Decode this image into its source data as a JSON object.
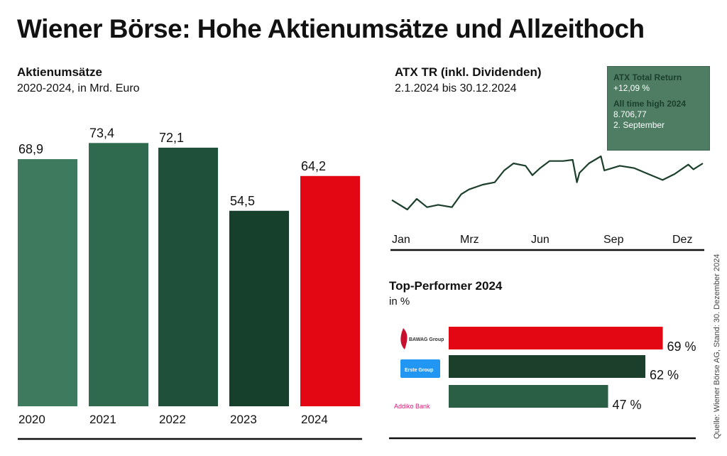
{
  "title": "Wiener Börse: Hohe Aktienumsätze und Allzeithoch",
  "source": "Quelle: Wiener Börse AG, Stand: 30. Dezember 2024",
  "chart_data": [
    {
      "type": "bar",
      "title": "Aktienumsätze",
      "subtitle": "2020-2024, in Mrd. Euro",
      "categories": [
        "2020",
        "2021",
        "2022",
        "2023",
        "2024"
      ],
      "values": [
        68.9,
        73.4,
        72.1,
        54.5,
        64.2
      ],
      "value_labels": [
        "68,9",
        "73,4",
        "72,1",
        "54,5",
        "64,2"
      ],
      "colors": [
        "#3d7a5e",
        "#2f6a4f",
        "#1f5039",
        "#163f2c",
        "#e30613"
      ],
      "ylim": [
        0,
        75
      ],
      "grid": false
    },
    {
      "type": "line",
      "title": "ATX TR (inkl. Dividenden)",
      "subtitle": "2.1.2024 bis 30.12.2024",
      "x_tick_labels": [
        "Jan",
        "Mrz",
        "Jun",
        "Sep",
        "Dez"
      ],
      "color": "#1b3f2b",
      "grid": false,
      "x": [
        "2024-01-02",
        "2024-01-20",
        "2024-01-31",
        "2024-02-12",
        "2024-02-25",
        "2024-03-12",
        "2024-03-23",
        "2024-04-01",
        "2024-04-17",
        "2024-05-01",
        "2024-05-12",
        "2024-05-23",
        "2024-06-06",
        "2024-06-14",
        "2024-06-23",
        "2024-07-04",
        "2024-07-20",
        "2024-07-31",
        "2024-08-05",
        "2024-08-08",
        "2024-08-19",
        "2024-09-02",
        "2024-09-06",
        "2024-09-24",
        "2024-10-11",
        "2024-10-24",
        "2024-11-13",
        "2024-11-27",
        "2024-12-13",
        "2024-12-19",
        "2024-12-30"
      ],
      "y": [
        7719,
        7506,
        7746,
        7559,
        7613,
        7559,
        7853,
        7959,
        8066,
        8119,
        8386,
        8546,
        8493,
        8279,
        8439,
        8599,
        8599,
        8626,
        8119,
        8333,
        8546,
        8706.77,
        8386,
        8493,
        8439,
        8333,
        8173,
        8306,
        8519,
        8413,
        8546
      ],
      "annotation": {
        "label1": "ATX Total Return",
        "value1": "+12,09 %",
        "label2": "All time high 2024",
        "value2": "8.706,77",
        "date2": "2. September",
        "color": "#4e7d63"
      }
    },
    {
      "type": "bar",
      "orientation": "horizontal",
      "title": "Top-Performer 2024",
      "subtitle": "in %",
      "categories": [
        "BAWAG Group",
        "Erste Group",
        "Addiko Bank"
      ],
      "values": [
        69,
        62,
        47
      ],
      "value_labels": [
        "69 %",
        "62 %",
        "47 %"
      ],
      "colors": [
        "#e30613",
        "#1b3f2b",
        "#2a5e45"
      ],
      "logo_colors": [
        "#c8102e",
        "#2196f3",
        "#e0157a"
      ]
    }
  ]
}
